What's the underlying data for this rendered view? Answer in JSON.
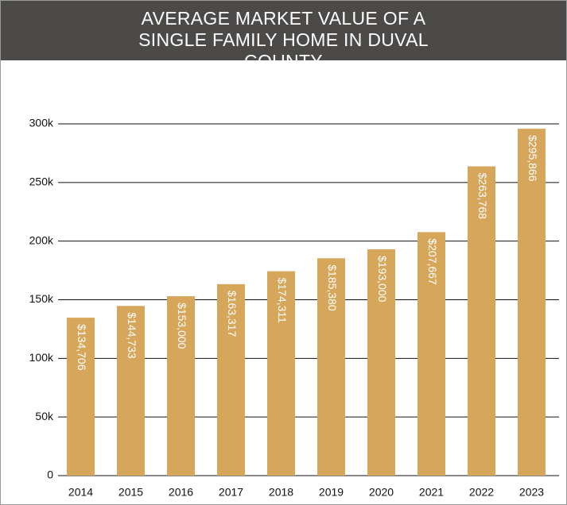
{
  "chart_data": {
    "type": "bar",
    "title": "AVERAGE MARKET VALUE OF A SINGLE FAMILY HOME IN DUVAL COUNTY",
    "categories": [
      "2014",
      "2015",
      "2016",
      "2017",
      "2018",
      "2019",
      "2020",
      "2021",
      "2022",
      "2023"
    ],
    "values": [
      134706,
      144733,
      153000,
      163317,
      174311,
      185380,
      193000,
      207667,
      263768,
      295866
    ],
    "value_labels": [
      "$134,706",
      "$144,733",
      "$153,000",
      "$163,317",
      "$174,311",
      "$185,380",
      "$193,000",
      "$207,667",
      "$263,768",
      "$295,866"
    ],
    "color": "#d6a65b",
    "ylim": [
      0,
      300000
    ],
    "yticks": [
      0,
      {
        "value": 50000,
        "label": "50k"
      },
      {
        "value": 100000,
        "label": "100k"
      },
      {
        "value": 150000,
        "label": "150k"
      },
      {
        "value": 200000,
        "label": "200k"
      },
      {
        "value": 250000,
        "label": "250k"
      },
      {
        "value": 300000,
        "label": "300k"
      }
    ],
    "grid": true
  }
}
